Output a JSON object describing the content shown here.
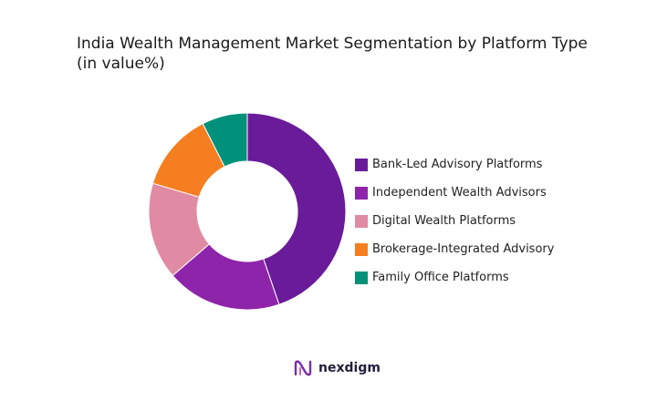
{
  "chart_data": {
    "type": "pie",
    "title_lines": [
      "India Wealth Management Market Segmentation by Platform Type",
      "(in value%)"
    ],
    "categories": [
      "Bank-Led Advisory Platforms",
      "Independent Wealth Advisors",
      "Digital Wealth Platforms",
      "Brokerage-Integrated Advisory",
      "Family Office Platforms"
    ],
    "values": [
      45,
      19,
      16,
      13,
      7.5
    ],
    "colors": [
      "#6a1b9a",
      "#8e24aa",
      "#e08aa3",
      "#f57f20",
      "#00917a"
    ],
    "donut": true,
    "legend_position": "right"
  },
  "brand": {
    "name": "nexdigm",
    "logo_icon": "nexdigm-logo-icon",
    "color": "#7a2ca8"
  }
}
